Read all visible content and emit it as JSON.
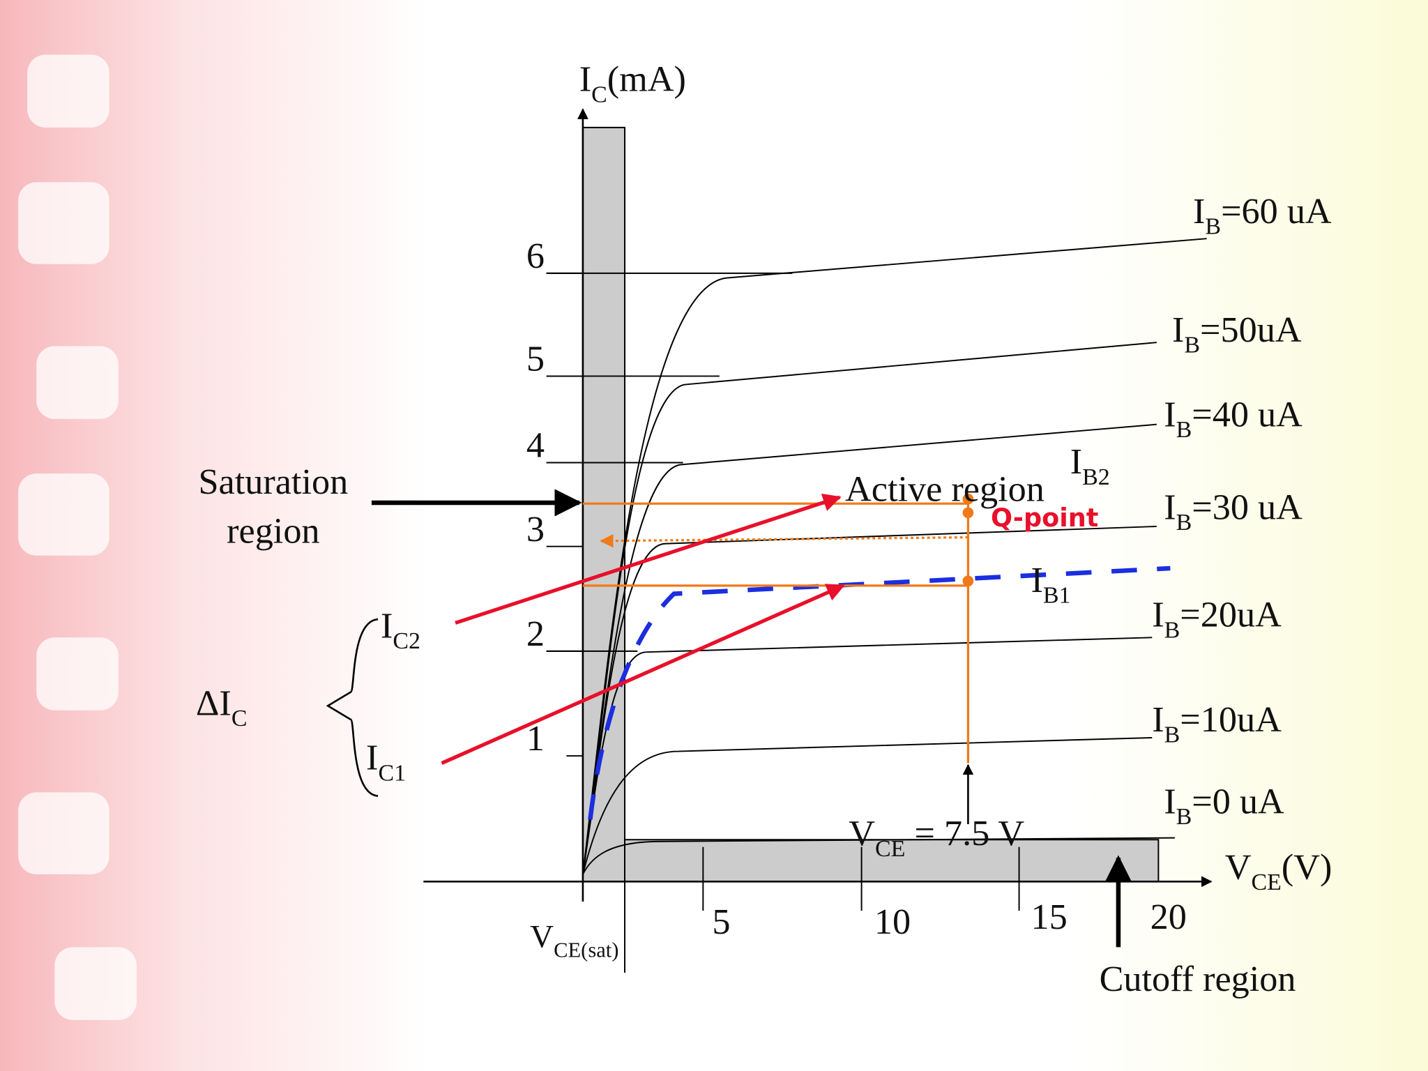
{
  "axes": {
    "y_label": {
      "main": "I",
      "sub": "C",
      "rest": "(mA)"
    },
    "x_label": {
      "main": "V",
      "sub": "CE",
      "rest": "(V)"
    },
    "y_ticks": [
      "1",
      "2",
      "3",
      "4",
      "5",
      "6"
    ],
    "x_ticks": [
      "5",
      "10",
      "15",
      "20"
    ],
    "vce_sat": {
      "main": "V",
      "sub": "CE(sat)"
    }
  },
  "curves": [
    {
      "main": "I",
      "sub": "B",
      "rest": "=60 uA"
    },
    {
      "main": "I",
      "sub": "B",
      "rest": "=50uA"
    },
    {
      "main": "I",
      "sub": "B",
      "rest": "=40 uA"
    },
    {
      "main": "I",
      "sub": "B",
      "rest": "=30 uA"
    },
    {
      "main": "I",
      "sub": "B",
      "rest": "=20uA"
    },
    {
      "main": "I",
      "sub": "B",
      "rest": "=10uA"
    },
    {
      "main": "I",
      "sub": "B",
      "rest": "=0 uA"
    }
  ],
  "annotations": {
    "saturation": [
      "Saturation",
      "region"
    ],
    "active": "Active region",
    "cutoff": "Cutoff region",
    "q_point": "Q-point",
    "ib2": {
      "main": "I",
      "sub": "B2"
    },
    "ib1": {
      "main": "I",
      "sub": "B1"
    },
    "ic2": {
      "main": "I",
      "sub": "C2"
    },
    "ic1": {
      "main": "I",
      "sub": "C1"
    },
    "delta_ic": {
      "main": "ΔI",
      "sub": "C"
    },
    "vce_q": {
      "main": "V",
      "sub": "CE",
      "rest": " = 7.5 V"
    }
  }
}
